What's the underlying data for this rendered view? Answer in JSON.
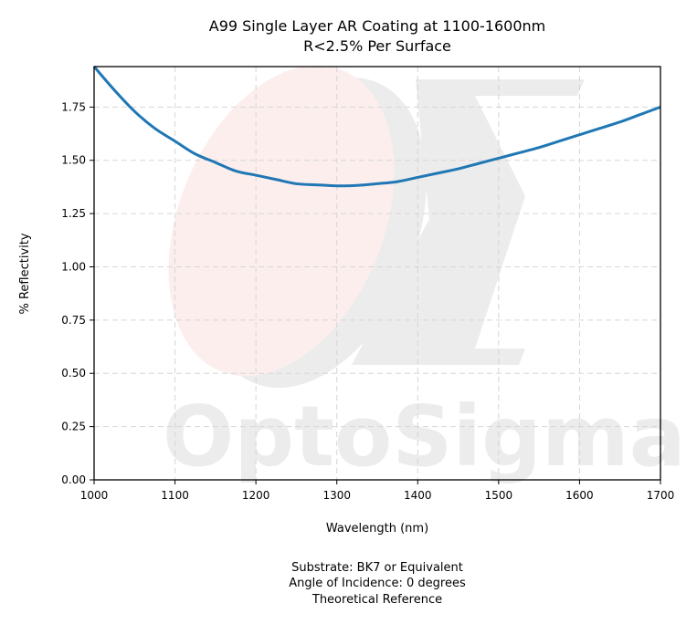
{
  "chart_data": {
    "type": "line",
    "title": "A99 Single Layer AR Coating at 1100-1600nm",
    "subtitle": "R<2.5% Per Surface",
    "xlabel": "Wavelength (nm)",
    "ylabel": "% Reflectivity",
    "xlim": [
      1000,
      1700
    ],
    "ylim": [
      0,
      1.94
    ],
    "xticks": [
      "1000",
      "1100",
      "1200",
      "1300",
      "1400",
      "1500",
      "1600",
      "1700"
    ],
    "yticks": [
      "0.00",
      "0.25",
      "0.50",
      "0.75",
      "1.00",
      "1.25",
      "1.50",
      "1.75"
    ],
    "grid": true,
    "series": [
      {
        "color": "#1f77b4",
        "x": [
          1000,
          1025,
          1050,
          1075,
          1100,
          1125,
          1150,
          1175,
          1200,
          1225,
          1250,
          1275,
          1300,
          1325,
          1350,
          1375,
          1400,
          1425,
          1450,
          1475,
          1500,
          1525,
          1550,
          1575,
          1600,
          1625,
          1650,
          1675,
          1700
        ],
        "y": [
          1.94,
          1.83,
          1.73,
          1.65,
          1.59,
          1.53,
          1.49,
          1.45,
          1.43,
          1.41,
          1.39,
          1.385,
          1.38,
          1.382,
          1.39,
          1.4,
          1.42,
          1.44,
          1.46,
          1.485,
          1.51,
          1.535,
          1.56,
          1.59,
          1.62,
          1.65,
          1.68,
          1.715,
          1.75
        ]
      }
    ],
    "footer": [
      "Substrate: BK7 or Equivalent",
      "Angle of Incidence: 0 degrees",
      "Theoretical Reference"
    ],
    "watermark": "OptoSigma"
  }
}
